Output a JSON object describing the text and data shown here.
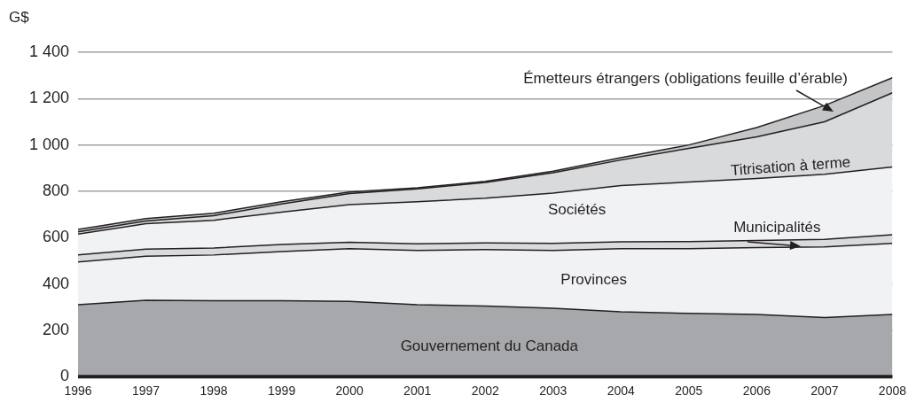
{
  "chart_data": {
    "type": "area",
    "ylabel": "G$",
    "stacked": true,
    "x": [
      1996,
      1997,
      1998,
      1999,
      2000,
      2001,
      2002,
      2003,
      2004,
      2005,
      2006,
      2007,
      2008
    ],
    "xlim": [
      1996,
      2008
    ],
    "xticks": [
      1996,
      1997,
      1998,
      1999,
      2000,
      2001,
      2002,
      2003,
      2004,
      2005,
      2006,
      2007,
      2008
    ],
    "ylim": [
      0,
      1400
    ],
    "yticks": [
      0,
      200,
      400,
      600,
      800,
      {
        "value": 1000,
        "label": "1 000"
      },
      {
        "value": 1200,
        "label": "1 200"
      },
      {
        "value": 1400,
        "label": "1 400"
      }
    ],
    "grid": "y",
    "legend": false,
    "series": [
      {
        "name": "Gouvernement du Canada",
        "color": "#a7a8ab",
        "values": [
          310,
          330,
          328,
          328,
          325,
          310,
          305,
          295,
          280,
          273,
          268,
          255,
          268
        ]
      },
      {
        "name": "Provinces",
        "color": "#f1f2f4",
        "values": [
          185,
          190,
          197,
          212,
          227,
          235,
          243,
          250,
          272,
          279,
          289,
          305,
          307
        ]
      },
      {
        "name": "Municipalités",
        "color": "#d9dadc",
        "values": [
          30,
          30,
          30,
          30,
          28,
          28,
          29,
          30,
          30,
          31,
          31,
          32,
          37
        ]
      },
      {
        "name": "Sociétés",
        "color": "#f1f2f4",
        "values": [
          90,
          110,
          120,
          140,
          162,
          182,
          193,
          217,
          243,
          257,
          267,
          281,
          293
        ]
      },
      {
        "name": "Titrisation à terme",
        "color": "#d9dadc",
        "values": [
          10,
          12,
          20,
          35,
          48,
          55,
          68,
          88,
          110,
          145,
          180,
          227,
          320
        ]
      },
      {
        "name": "Émetteurs étrangers (obligations feuille d’érable)",
        "color": "#c4c5c7",
        "values": [
          10,
          10,
          10,
          10,
          7,
          5,
          5,
          7,
          10,
          15,
          40,
          70,
          65
        ]
      }
    ]
  }
}
